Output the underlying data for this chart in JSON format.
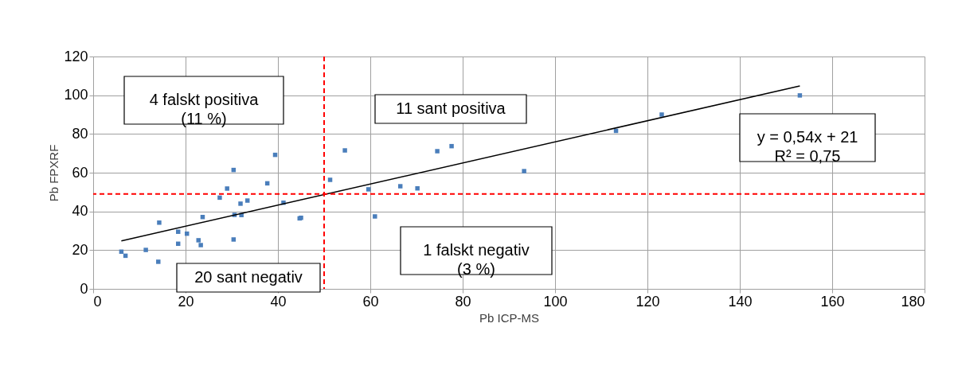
{
  "chart_data": {
    "type": "scatter",
    "xlabel": "Pb ICP-MS",
    "ylabel": "Pb FPXRF",
    "xlim": [
      0,
      180
    ],
    "xticks": [
      0,
      20,
      40,
      60,
      80,
      100,
      120,
      140,
      160,
      180
    ],
    "ylim": [
      0,
      120
    ],
    "yticks": [
      0,
      20,
      40,
      60,
      80,
      100,
      120
    ],
    "grid": true,
    "series": [
      {
        "marker": "square",
        "color": "#4a7ebb",
        "x": [
          6.1,
          7.0,
          11.4,
          14.1,
          14.3,
          18.4,
          18.4,
          20.3,
          22.8,
          23.3,
          23.7,
          27.4,
          29.0,
          30.4,
          30.4,
          30.6,
          31.9,
          32.1,
          33.4,
          37.7,
          39.4,
          41.2,
          44.7,
          45.0,
          51.3,
          54.5,
          59.6,
          61.0,
          66.5,
          70.2,
          74.5,
          77.6,
          93.3,
          113.2,
          123.1,
          153.0
        ],
        "values": [
          19.2,
          17.1,
          20.1,
          14.0,
          34.2,
          29.5,
          23.3,
          28.5,
          25.1,
          22.6,
          37.1,
          47.1,
          51.8,
          61.4,
          25.5,
          38.2,
          44.0,
          38.1,
          45.6,
          54.5,
          69.2,
          44.5,
          36.4,
          36.7,
          56.3,
          71.5,
          51.4,
          37.4,
          53.0,
          51.9,
          71.1,
          73.7,
          60.8,
          81.6,
          90.0,
          99.9
        ]
      },
      {
        "type": "line",
        "color": "#000000",
        "x": [
          6.1,
          153.0
        ],
        "values": [
          24.8,
          104.8
        ]
      }
    ],
    "ref_lines": [
      {
        "axis": "x",
        "value": 50,
        "color": "#ff0000",
        "line_style": "dashed"
      },
      {
        "axis": "y",
        "value": 49,
        "color": "#ff0000",
        "line_style": "dashed"
      }
    ],
    "annotations": [
      "4 falskt positiva\n(11 %)",
      "11 sant positiva",
      "y = 0,54x + 21\nR² = 0,75",
      "1 falskt negativ\n(3 %)",
      "20 sant negativ"
    ]
  }
}
